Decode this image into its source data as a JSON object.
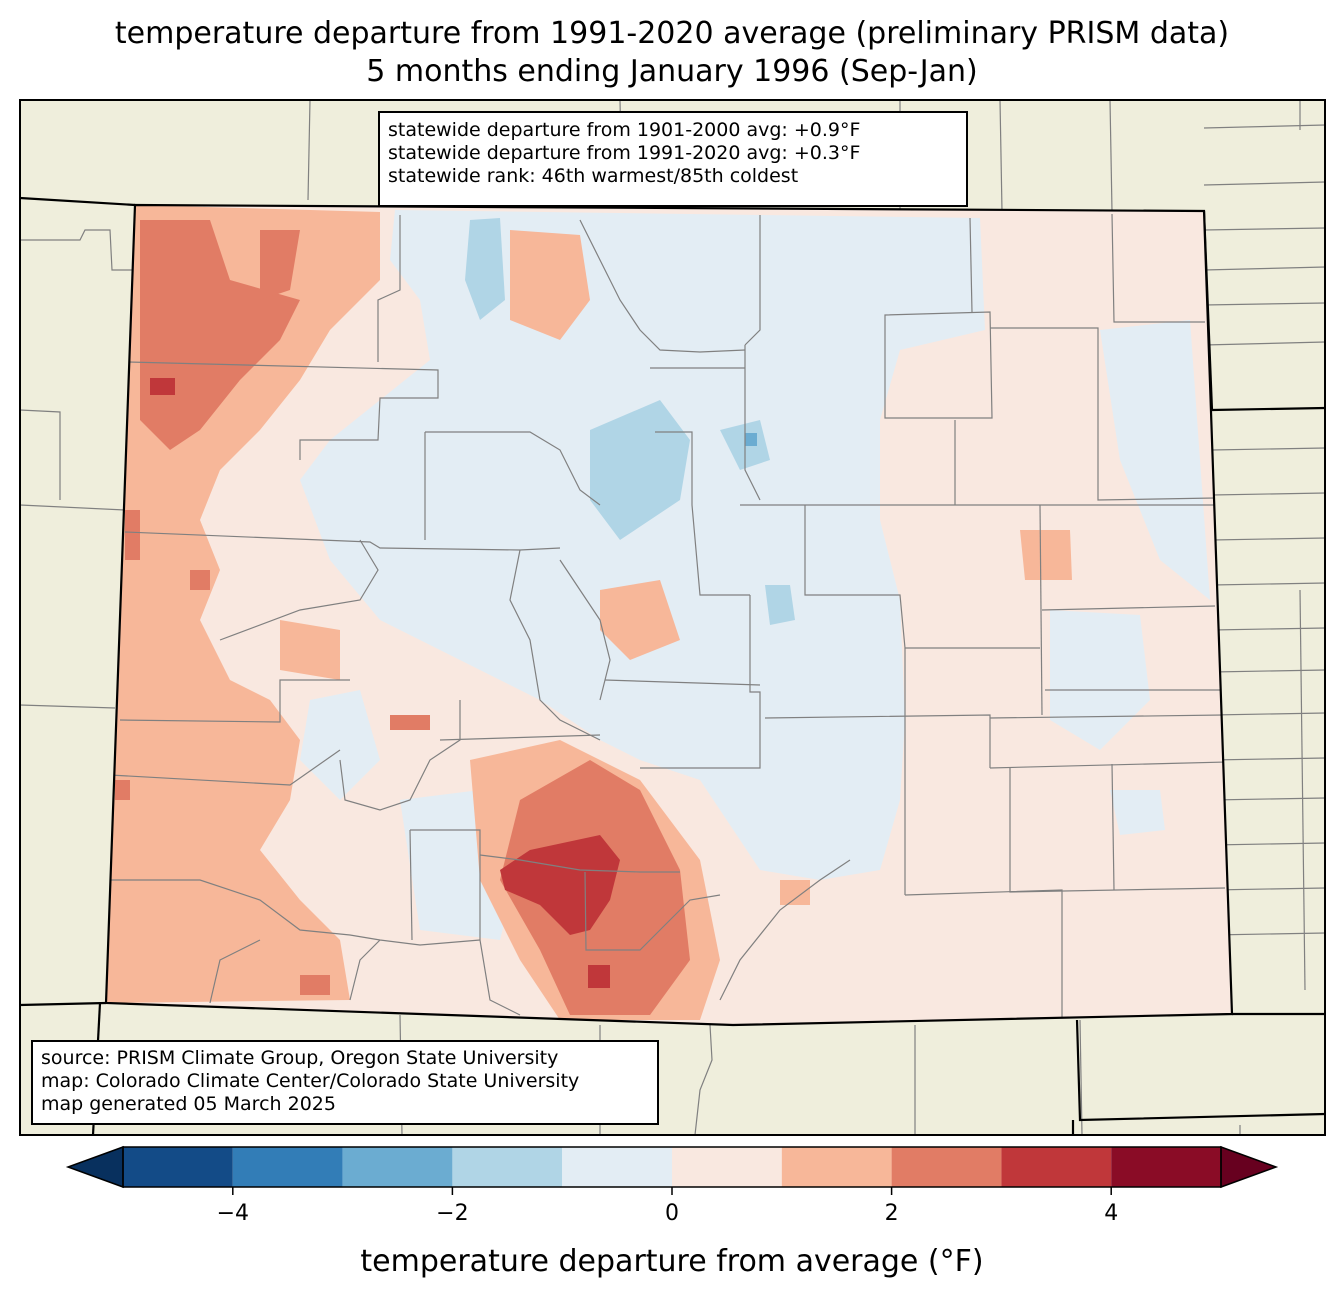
{
  "title": {
    "line1": "temperature departure from 1991-2020 average (preliminary PRISM data)",
    "line2": "5 months ending January 1996 (Sep-Jan)"
  },
  "stats_box": {
    "line1": "statewide departure from 1901-2000 avg: +0.9°F",
    "line2": "statewide departure from 1991-2020 avg: +0.3°F",
    "line3": "statewide rank: 46th warmest/85th coldest"
  },
  "source_box": {
    "line1": "source: PRISM Climate Group, Oregon State University",
    "line2": "map: Colorado Climate Center/Colorado State University",
    "line3": "map generated 05 March 2025"
  },
  "colorbar": {
    "title": "temperature departure from average (°F)",
    "ticks": [
      "−4",
      "−2",
      "0",
      "2",
      "4"
    ],
    "tick_values": [
      -4,
      -2,
      0,
      2,
      4
    ],
    "range": [
      -5,
      5
    ],
    "bins": [
      {
        "from": -5,
        "to": -4,
        "color": "#134b87"
      },
      {
        "from": -4,
        "to": -3,
        "color": "#327db7"
      },
      {
        "from": -3,
        "to": -2,
        "color": "#6bacd1"
      },
      {
        "from": -2,
        "to": -1,
        "color": "#b0d5e6"
      },
      {
        "from": -1,
        "to": 0,
        "color": "#e3edf4"
      },
      {
        "from": 0,
        "to": 1,
        "color": "#f9e8e0"
      },
      {
        "from": 1,
        "to": 2,
        "color": "#f7b799"
      },
      {
        "from": 2,
        "to": 3,
        "color": "#e17c65"
      },
      {
        "from": 3,
        "to": 4,
        "color": "#c0373a"
      },
      {
        "from": 4,
        "to": 5,
        "color": "#8a0c26"
      }
    ],
    "under_color": "#08305e",
    "over_color": "#67001f"
  },
  "colors": {
    "land": "#efeedc",
    "neutral_cool": "#e3edf4",
    "neutral_warm": "#f9e8e0",
    "warm1": "#f7b799",
    "warm2": "#e17c65",
    "warm3": "#c0373a",
    "warm4": "#8a0c26",
    "cool1": "#b0d5e6",
    "cool2": "#6bacd1",
    "county_line": "#808080"
  }
}
